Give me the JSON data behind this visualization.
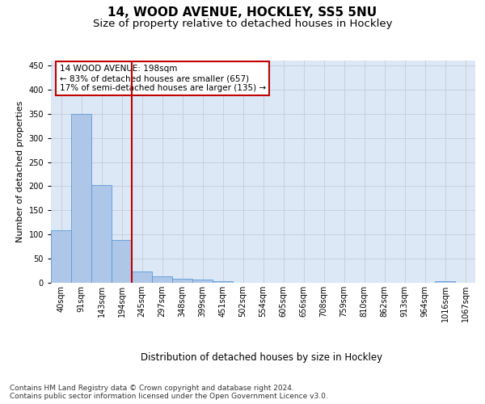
{
  "title1": "14, WOOD AVENUE, HOCKLEY, SS5 5NU",
  "title2": "Size of property relative to detached houses in Hockley",
  "xlabel": "Distribution of detached houses by size in Hockley",
  "ylabel": "Number of detached properties",
  "categories": [
    "40sqm",
    "91sqm",
    "143sqm",
    "194sqm",
    "245sqm",
    "297sqm",
    "348sqm",
    "399sqm",
    "451sqm",
    "502sqm",
    "554sqm",
    "605sqm",
    "656sqm",
    "708sqm",
    "759sqm",
    "810sqm",
    "862sqm",
    "913sqm",
    "964sqm",
    "1016sqm",
    "1067sqm"
  ],
  "values": [
    108,
    350,
    202,
    88,
    23,
    14,
    9,
    7,
    4,
    0,
    0,
    0,
    0,
    0,
    0,
    0,
    0,
    0,
    0,
    4,
    0
  ],
  "bar_color": "#aec6e8",
  "bar_edge_color": "#5b9bd5",
  "vline_x_index": 3.5,
  "vline_color": "#c00000",
  "annotation_text": "14 WOOD AVENUE: 198sqm\n← 83% of detached houses are smaller (657)\n17% of semi-detached houses are larger (135) →",
  "annotation_box_color": "#ffffff",
  "annotation_box_edge": "#c00000",
  "ylim": [
    0,
    460
  ],
  "yticks": [
    0,
    50,
    100,
    150,
    200,
    250,
    300,
    350,
    400,
    450
  ],
  "grid_color": "#c8d0dc",
  "bg_color": "#dce8f5",
  "footer_text": "Contains HM Land Registry data © Crown copyright and database right 2024.\nContains public sector information licensed under the Open Government Licence v3.0.",
  "title1_fontsize": 11,
  "title2_fontsize": 9.5,
  "xlabel_fontsize": 8.5,
  "ylabel_fontsize": 8,
  "tick_fontsize": 7,
  "annotation_fontsize": 7.5,
  "footer_fontsize": 6.5
}
